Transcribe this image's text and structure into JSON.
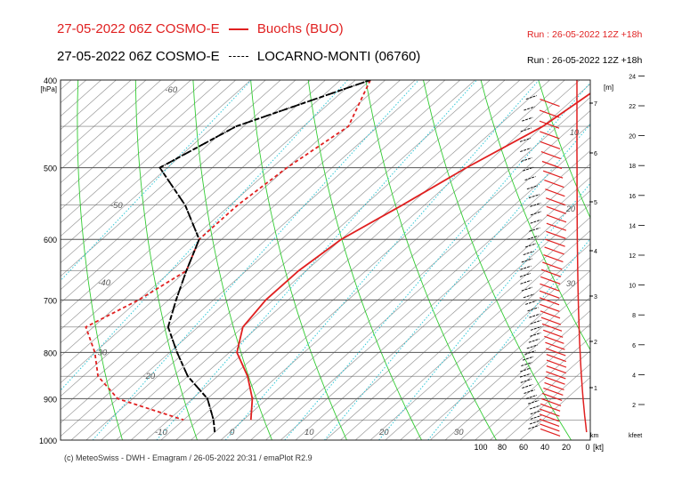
{
  "header": {
    "line1_prefix": "27-05-2022 06Z COSMO-E",
    "line1_station": "Buochs (BUO)",
    "line1_run": "Run : 26-05-2022 12Z +18h",
    "line2_prefix": "27-05-2022 06Z COSMO-E",
    "line2_station": "LOCARNO-MONTI (06760)",
    "line2_run": "Run : 26-05-2022 12Z +18h",
    "footer": "(c) MeteoSwiss - DWH - Emagram / 26-05-2022  20:31  / emaPlot R2.9"
  },
  "colors": {
    "station1": "#e02020",
    "station2": "#000000",
    "isotherm": "#9a9a9a",
    "dry_adiabat": "#33cc33",
    "mixing_ratio": "#33c8d8",
    "pressure_line": "#555555"
  },
  "chart_data": {
    "type": "line",
    "subtype": "emagram",
    "yaxis": {
      "label": "[hPa]",
      "scale": "log",
      "range": [
        1000,
        400
      ],
      "ticks": [
        400,
        500,
        600,
        700,
        800,
        900,
        1000
      ]
    },
    "temperature_labels": [
      -60,
      -50,
      -40,
      -30,
      -20,
      -10,
      0,
      10,
      20,
      30
    ],
    "wind_axis": {
      "label": "[kt]",
      "ticks": [
        100,
        80,
        60,
        40,
        20,
        0
      ]
    },
    "height_m_axis": {
      "label": "[m]",
      "ticks": [
        1,
        2,
        3,
        4,
        5,
        6,
        7
      ],
      "unit_label": "km"
    },
    "height_ft_axis": {
      "label": "kfeet",
      "ticks": [
        2,
        4,
        6,
        8,
        10,
        12,
        14,
        16,
        18,
        20,
        22,
        24
      ]
    },
    "isotach_labels": [
      10,
      20,
      30
    ],
    "series": [
      {
        "name": "Buochs (BUO)",
        "variable": "temperature",
        "style": "solid",
        "color": "#e02020",
        "points": [
          [
            400,
            -2
          ],
          [
            450,
            -4
          ],
          [
            500,
            -8
          ],
          [
            550,
            -11
          ],
          [
            600,
            -14
          ],
          [
            650,
            -15
          ],
          [
            700,
            -15
          ],
          [
            750,
            -14
          ],
          [
            800,
            -11
          ],
          [
            850,
            -6
          ],
          [
            900,
            -2
          ],
          [
            950,
            1
          ]
        ]
      },
      {
        "name": "Buochs (BUO)",
        "variable": "dewpoint",
        "style": "dashed",
        "color": "#e02020",
        "points": [
          [
            400,
            -34
          ],
          [
            450,
            -30
          ],
          [
            500,
            -32
          ],
          [
            550,
            -33
          ],
          [
            600,
            -33
          ],
          [
            650,
            -30
          ],
          [
            700,
            -32
          ],
          [
            750,
            -35
          ],
          [
            800,
            -30
          ],
          [
            850,
            -26
          ],
          [
            900,
            -20
          ],
          [
            950,
            -8
          ]
        ]
      },
      {
        "name": "LOCARNO-MONTI (06760)",
        "variable": "temperature",
        "style": "dashdot",
        "color": "#000000",
        "points": [
          [
            400,
            -34
          ],
          [
            450,
            -45
          ],
          [
            500,
            -49
          ],
          [
            550,
            -40
          ],
          [
            600,
            -33
          ],
          [
            650,
            -30
          ],
          [
            700,
            -27
          ],
          [
            750,
            -24
          ],
          [
            800,
            -19
          ],
          [
            850,
            -14
          ],
          [
            900,
            -8
          ],
          [
            950,
            -4
          ],
          [
            980,
            -2
          ]
        ]
      },
      {
        "name": "LOCARNO-MONTI (06760)",
        "variable": "dewpoint",
        "style": "dashed",
        "color": "#000000",
        "points": [
          [
            400,
            -34
          ],
          [
            450,
            -45
          ],
          [
            500,
            -49
          ],
          [
            550,
            -40
          ],
          [
            600,
            -33
          ],
          [
            650,
            -30
          ],
          [
            700,
            -27
          ],
          [
            750,
            -24
          ],
          [
            800,
            -19
          ],
          [
            850,
            -14
          ],
          [
            900,
            -8
          ],
          [
            950,
            -4
          ],
          [
            980,
            -2
          ]
        ]
      }
    ]
  }
}
